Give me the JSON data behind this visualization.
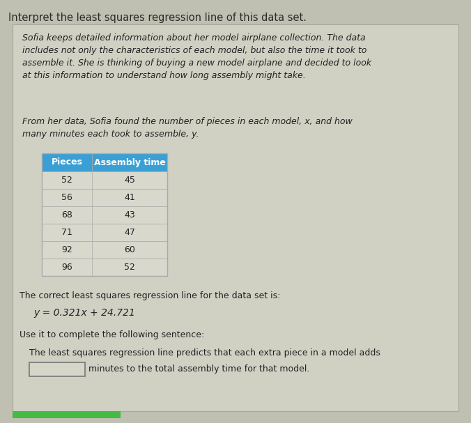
{
  "title": "Interpret the least squares regression line of this data set.",
  "paragraph1": "Sofia keeps detailed information about her model airplane collection. The data\nincludes not only the characteristics of each model, but also the time it took to\nassemble it. She is thinking of buying a new model airplane and decided to look\nat this information to understand how long assembly might take.",
  "paragraph2": "From her data, Sofia found the number of pieces in each model, x, and how\nmany minutes each took to assemble, y.",
  "table_headers": [
    "Pieces",
    "Assembly time"
  ],
  "table_data": [
    [
      52,
      45
    ],
    [
      56,
      41
    ],
    [
      68,
      43
    ],
    [
      71,
      47
    ],
    [
      92,
      60
    ],
    [
      96,
      52
    ]
  ],
  "regression_label": "The correct least squares regression line for the data set is:",
  "regression_eq": "y = 0.321x + 24.721",
  "use_it_label": "Use it to complete the following sentence:",
  "sentence_part1": "The least squares regression line predicts that each extra piece in a model adds",
  "sentence_part2": "minutes to the total assembly time for that model.",
  "bg_color": "#bfbfb2",
  "card_color": "#d0d0c3",
  "header_color": "#3a9fd4",
  "header_text_color": "#ffffff",
  "table_border_color": "#aaaaaa",
  "table_row_color": "#d8d8cc",
  "input_box_color": "#d5d5c8",
  "input_box_border": "#777777",
  "title_color": "#2a2a2a",
  "text_color": "#222222",
  "green_bar_color": "#44bb44"
}
